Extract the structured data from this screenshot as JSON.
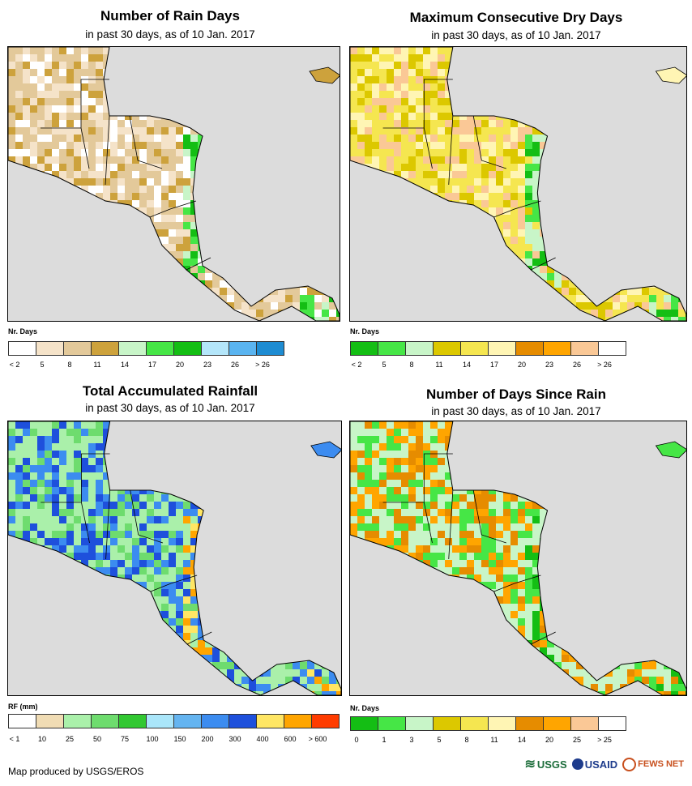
{
  "panels": [
    {
      "title": "Number of Rain Days",
      "subtitle": "in past 30 days, as of 10 Jan. 2017",
      "legend_label": "Nr. Days",
      "legend_colors": [
        "#ffffff",
        "#f5e3c9",
        "#e3c99a",
        "#cda23c",
        "#c8f5c8",
        "#46e646",
        "#14be14",
        "#b4e6fa",
        "#5ab4f0",
        "#1e8cd2"
      ],
      "legend_ticks": [
        "< 2",
        "5",
        "8",
        "11",
        "14",
        "17",
        "20",
        "23",
        "26",
        "> 26"
      ],
      "land_palette": [
        "#f5e3c9",
        "#e3c99a",
        "#cda23c",
        "#ffffff",
        "#e3c99a"
      ],
      "coast_palette": [
        "#46e646",
        "#c8f5c8",
        "#14be14"
      ]
    },
    {
      "title": "Maximum Consecutive Dry Days",
      "subtitle": "in past 30 days, as of 10 Jan. 2017",
      "legend_label": "Nr. Days",
      "legend_colors": [
        "#14be14",
        "#46e646",
        "#c8f5c8",
        "#dcc800",
        "#f5e650",
        "#fff5b4",
        "#e68c00",
        "#ffa500",
        "#fac896",
        "#ffffff"
      ],
      "legend_ticks": [
        "< 2",
        "5",
        "8",
        "11",
        "14",
        "17",
        "20",
        "23",
        "26",
        "> 26"
      ],
      "land_palette": [
        "#dcc800",
        "#f5e650",
        "#fff5b4",
        "#f5e650",
        "#fac896"
      ],
      "coast_palette": [
        "#46e646",
        "#c8f5c8",
        "#14be14"
      ]
    },
    {
      "title": "Total Accumulated Rainfall",
      "subtitle": "in past 30 days, as of 10 Jan. 2017",
      "legend_label": "RF (mm)",
      "legend_colors": [
        "#ffffff",
        "#f0dcb4",
        "#aaf0aa",
        "#6edc6e",
        "#32c832",
        "#aae6fa",
        "#64b4f0",
        "#3c8cf0",
        "#1e50dc",
        "#ffe664",
        "#ffa500",
        "#ff3c00"
      ],
      "legend_ticks": [
        "< 1",
        "10",
        "25",
        "50",
        "75",
        "100",
        "150",
        "200",
        "300",
        "400",
        "600",
        "> 600"
      ],
      "land_palette": [
        "#aaf0aa",
        "#6edc6e",
        "#3c8cf0",
        "#1e50dc",
        "#aaf0aa"
      ],
      "coast_palette": [
        "#ffa500",
        "#ffe664",
        "#3c8cf0"
      ]
    },
    {
      "title": "Number of Days Since Rain",
      "subtitle": "in past 30 days, as of 10 Jan. 2017",
      "legend_label": "Nr. Days",
      "legend_colors": [
        "#14be14",
        "#46e646",
        "#c8f5c8",
        "#dcc800",
        "#f5e650",
        "#fff5b4",
        "#e68c00",
        "#ffa500",
        "#fac896",
        "#ffffff"
      ],
      "legend_ticks": [
        "0",
        "1",
        "3",
        "5",
        "8",
        "11",
        "14",
        "20",
        "25",
        "> 25"
      ],
      "land_palette": [
        "#e68c00",
        "#c8f5c8",
        "#46e646",
        "#ffa500",
        "#c8f5c8"
      ],
      "coast_palette": [
        "#46e646",
        "#14be14",
        "#c8f5c8"
      ]
    }
  ],
  "footer": "Map produced by USGS/EROS",
  "logos": [
    "USGS",
    "USAID",
    "FEWS NET"
  ]
}
